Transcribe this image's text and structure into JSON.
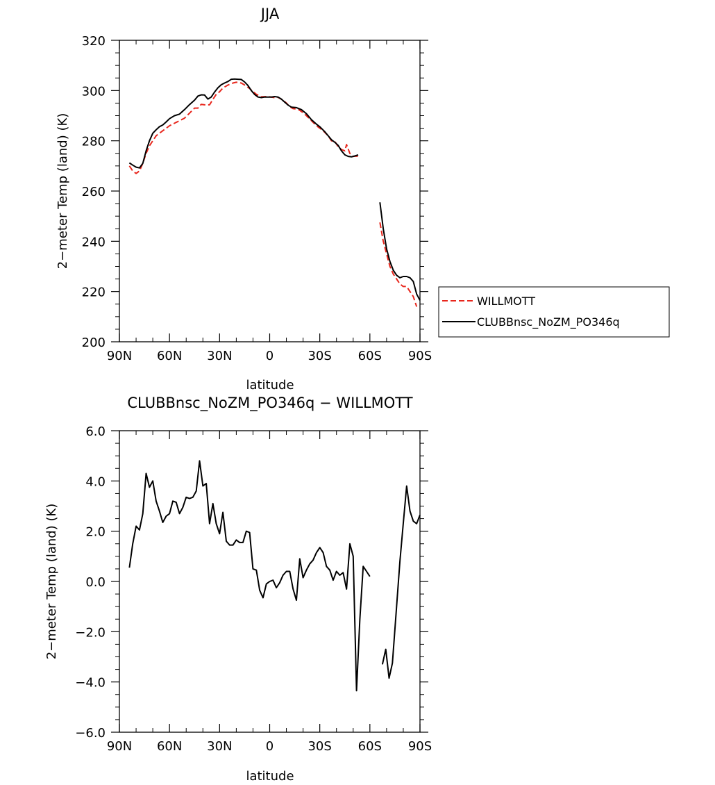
{
  "chart_data": [
    {
      "type": "line",
      "title": "JJA",
      "xlabel": "latitude",
      "ylabel": "2−meter Temp (land) (K)",
      "xlim": [
        90,
        -90
      ],
      "ylim": [
        200,
        320
      ],
      "x_ticks": [
        90,
        60,
        30,
        0,
        -30,
        -60,
        -90
      ],
      "x_tick_labels": [
        "90N",
        "60N",
        "30N",
        "0",
        "30S",
        "60S",
        "90S"
      ],
      "y_ticks": [
        200,
        220,
        240,
        260,
        280,
        300,
        320
      ],
      "y_tick_labels": [
        "200",
        "220",
        "240",
        "260",
        "280",
        "300",
        "320"
      ],
      "legend_position": "right",
      "series": [
        {
          "name": "WILLMOTT",
          "color": "#e8261c",
          "dash": "dashed",
          "segments": [
            [
              [
                84,
                270
              ],
              [
                82,
                268
              ],
              [
                80,
                267
              ],
              [
                78,
                268
              ],
              [
                76,
                271
              ],
              [
                74,
                275
              ],
              [
                72,
                278
              ],
              [
                70,
                280
              ],
              [
                68,
                282
              ],
              [
                66,
                283
              ],
              [
                64,
                284
              ],
              [
                62,
                285
              ],
              [
                60,
                286
              ],
              [
                57,
                287
              ],
              [
                54,
                288
              ],
              [
                51,
                289
              ],
              [
                48,
                291
              ],
              [
                45,
                293
              ],
              [
                43,
                293
              ],
              [
                41,
                294.5
              ],
              [
                39,
                294.3
              ],
              [
                36,
                294.3
              ],
              [
                34,
                296.5
              ],
              [
                32,
                298.5
              ],
              [
                30,
                299.5
              ],
              [
                28,
                301
              ],
              [
                25,
                302.2
              ],
              [
                22,
                303
              ],
              [
                20,
                303.3
              ],
              [
                17,
                303
              ],
              [
                15,
                302.2
              ],
              [
                12,
                300.8
              ],
              [
                10,
                299.6
              ],
              [
                8,
                298.5
              ],
              [
                5,
                297.5
              ],
              [
                2,
                297.6
              ],
              [
                0,
                297.5
              ],
              [
                -3,
                297.2
              ],
              [
                -5,
                297.3
              ],
              [
                -8,
                296.2
              ],
              [
                -10,
                295
              ],
              [
                -12,
                293.6
              ],
              [
                -14,
                292.8
              ],
              [
                -17,
                292.6
              ],
              [
                -20,
                291.2
              ],
              [
                -22,
                290
              ],
              [
                -25,
                288
              ],
              [
                -28,
                286
              ],
              [
                -30,
                285
              ],
              [
                -32,
                284
              ],
              [
                -35,
                282
              ],
              [
                -37,
                280
              ],
              [
                -39,
                279.8
              ],
              [
                -41,
                277.6
              ],
              [
                -43,
                276.5
              ],
              [
                -45,
                276
              ],
              [
                -46,
                278.5
              ],
              [
                -48,
                275
              ],
              [
                -50,
                273.8
              ],
              [
                -52,
                273.9
              ],
              [
                -54,
                273.8
              ]
            ],
            [
              [
                -66,
                247.5
              ],
              [
                -68,
                240
              ],
              [
                -70,
                235
              ],
              [
                -72,
                230
              ],
              [
                -74,
                227
              ],
              [
                -76,
                225
              ],
              [
                -78,
                223
              ],
              [
                -80,
                222
              ],
              [
                -82,
                222
              ],
              [
                -84,
                220
              ],
              [
                -86,
                218
              ],
              [
                -88,
                214
              ]
            ]
          ]
        },
        {
          "name": "CLUBBnsc_NoZM_PO346q",
          "color": "#000000",
          "dash": "solid",
          "segments": [
            [
              [
                84,
                271.2
              ],
              [
                82,
                270.3
              ],
              [
                80,
                269.5
              ],
              [
                78,
                269.2
              ],
              [
                76,
                271
              ],
              [
                74,
                276
              ],
              [
                72,
                280
              ],
              [
                70,
                283
              ],
              [
                68,
                284.4
              ],
              [
                66,
                285.6
              ],
              [
                64,
                286.3
              ],
              [
                62,
                287.5
              ],
              [
                60,
                288.8
              ],
              [
                57,
                290
              ],
              [
                54,
                290.6
              ],
              [
                51,
                292.4
              ],
              [
                48,
                294.4
              ],
              [
                45,
                296.2
              ],
              [
                43,
                297.8
              ],
              [
                41,
                298.3
              ],
              [
                39,
                298.2
              ],
              [
                37,
                296.6
              ],
              [
                35,
                297.4
              ],
              [
                33,
                299.4
              ],
              [
                31,
                301.1
              ],
              [
                29,
                302.3
              ],
              [
                27,
                303
              ],
              [
                25,
                303.6
              ],
              [
                23,
                304.5
              ],
              [
                21,
                304.6
              ],
              [
                19,
                304.5
              ],
              [
                17,
                304.4
              ],
              [
                15,
                303.4
              ],
              [
                13,
                302
              ],
              [
                11,
                300
              ],
              [
                9,
                298.4
              ],
              [
                7,
                297.4
              ],
              [
                5,
                297.2
              ],
              [
                3,
                297.4
              ],
              [
                1,
                297.4
              ],
              [
                -1,
                297.4
              ],
              [
                -3,
                297.6
              ],
              [
                -5,
                297.4
              ],
              [
                -7,
                296.6
              ],
              [
                -9,
                295.4
              ],
              [
                -11,
                294.2
              ],
              [
                -13,
                293.4
              ],
              [
                -16,
                293.2
              ],
              [
                -19,
                292.4
              ],
              [
                -22,
                290.8
              ],
              [
                -25,
                288.4
              ],
              [
                -28,
                286.6
              ],
              [
                -30,
                285.6
              ],
              [
                -33,
                283.6
              ],
              [
                -35,
                282
              ],
              [
                -37,
                280.4
              ],
              [
                -39,
                279.4
              ],
              [
                -41,
                278.2
              ],
              [
                -43,
                276
              ],
              [
                -45,
                274.4
              ],
              [
                -47,
                273.8
              ],
              [
                -49,
                273.6
              ],
              [
                -51,
                274
              ],
              [
                -53,
                274.4
              ]
            ],
            [
              [
                -66,
                255.5
              ],
              [
                -68,
                245
              ],
              [
                -70,
                237
              ],
              [
                -72,
                232
              ],
              [
                -74,
                228.5
              ],
              [
                -76,
                226.5
              ],
              [
                -78,
                225.5
              ],
              [
                -80,
                226
              ],
              [
                -82,
                226
              ],
              [
                -84,
                225.5
              ],
              [
                -86,
                224
              ],
              [
                -88,
                219
              ],
              [
                -90,
                216.5
              ]
            ]
          ]
        }
      ]
    },
    {
      "type": "line",
      "title": "CLUBBnsc_NoZM_PO346q − WILLMOTT",
      "xlabel": "latitude",
      "ylabel": "2−meter Temp (land) (K)",
      "xlim": [
        90,
        -90
      ],
      "ylim": [
        -6,
        6
      ],
      "x_ticks": [
        90,
        60,
        30,
        0,
        -30,
        -60,
        -90
      ],
      "x_tick_labels": [
        "90N",
        "60N",
        "30N",
        "0",
        "30S",
        "60S",
        "90S"
      ],
      "y_ticks": [
        -6,
        -4,
        -2,
        0,
        2,
        4,
        6
      ],
      "y_tick_labels": [
        "−6.0",
        "−4.0",
        "−2.0",
        "0.0",
        "2.0",
        "4.0",
        "6.0"
      ],
      "series": [
        {
          "color": "#000000",
          "dash": "solid",
          "segments": [
            [
              [
                84,
                0.55
              ],
              [
                82,
                1.5
              ],
              [
                80,
                2.2
              ],
              [
                78,
                2.05
              ],
              [
                76,
                2.7
              ],
              [
                74,
                4.3
              ],
              [
                72,
                3.75
              ],
              [
                70,
                4.0
              ],
              [
                68,
                3.2
              ],
              [
                66,
                2.8
              ],
              [
                64,
                2.35
              ],
              [
                62,
                2.6
              ],
              [
                60,
                2.7
              ],
              [
                58,
                3.2
              ],
              [
                56,
                3.15
              ],
              [
                54,
                2.7
              ],
              [
                52,
                2.95
              ],
              [
                50,
                3.35
              ],
              [
                48,
                3.3
              ],
              [
                46,
                3.35
              ],
              [
                44,
                3.6
              ],
              [
                42,
                4.8
              ],
              [
                40,
                3.8
              ],
              [
                38,
                3.9
              ],
              [
                36,
                2.3
              ],
              [
                34,
                3.1
              ],
              [
                32,
                2.3
              ],
              [
                30,
                1.9
              ],
              [
                28,
                2.75
              ],
              [
                26,
                1.6
              ],
              [
                24,
                1.45
              ],
              [
                22,
                1.45
              ],
              [
                20,
                1.65
              ],
              [
                18,
                1.55
              ],
              [
                16,
                1.55
              ],
              [
                14,
                2.0
              ],
              [
                12,
                1.95
              ],
              [
                10,
                0.5
              ],
              [
                8,
                0.45
              ],
              [
                6,
                -0.35
              ],
              [
                4,
                -0.65
              ],
              [
                2,
                -0.1
              ],
              [
                0,
                0.0
              ],
              [
                -2,
                0.05
              ],
              [
                -4,
                -0.25
              ],
              [
                -6,
                -0.05
              ],
              [
                -8,
                0.25
              ],
              [
                -10,
                0.4
              ],
              [
                -12,
                0.4
              ],
              [
                -14,
                -0.3
              ],
              [
                -16,
                -0.75
              ],
              [
                -18,
                0.9
              ],
              [
                -20,
                0.15
              ],
              [
                -22,
                0.45
              ],
              [
                -24,
                0.7
              ],
              [
                -26,
                0.85
              ],
              [
                -28,
                1.15
              ],
              [
                -30,
                1.35
              ],
              [
                -32,
                1.15
              ],
              [
                -34,
                0.6
              ],
              [
                -36,
                0.45
              ],
              [
                -38,
                0.05
              ],
              [
                -40,
                0.4
              ],
              [
                -42,
                0.25
              ],
              [
                -44,
                0.35
              ],
              [
                -46,
                -0.3
              ],
              [
                -48,
                1.5
              ],
              [
                -50,
                1.0
              ],
              [
                -52,
                -4.35
              ],
              [
                -54,
                -1.5
              ],
              [
                -56,
                0.6
              ],
              [
                -58,
                0.4
              ],
              [
                -60,
                0.2
              ]
            ],
            [
              [
                -67.5,
                -3.3
              ],
              [
                -69.5,
                -2.7
              ],
              [
                -71.5,
                -3.85
              ],
              [
                -73.5,
                -3.25
              ],
              [
                -76,
                -1.0
              ],
              [
                -78,
                0.8
              ],
              [
                -80,
                2.3
              ],
              [
                -82,
                3.8
              ],
              [
                -84,
                2.8
              ],
              [
                -86,
                2.4
              ],
              [
                -88,
                2.3
              ],
              [
                -90,
                2.65
              ]
            ]
          ]
        }
      ]
    }
  ]
}
